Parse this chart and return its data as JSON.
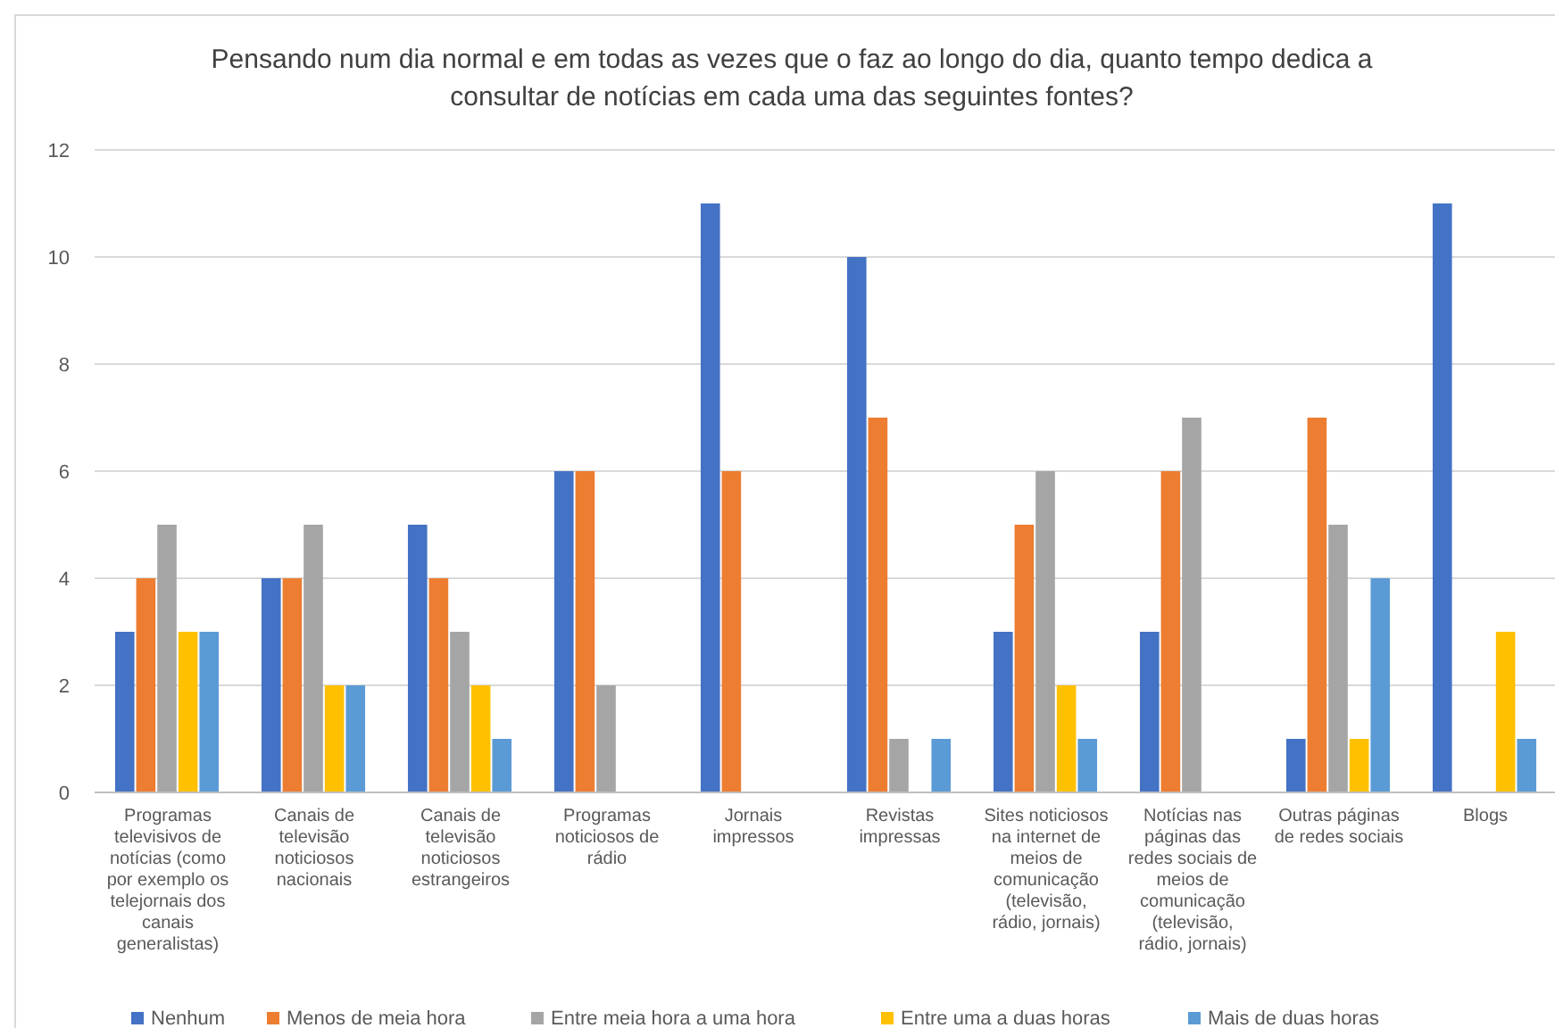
{
  "chart_data": {
    "type": "bar",
    "title": "Pensando num dia normal e em todas as vezes que o faz ao longo do dia, quanto tempo dedica a consultar de notícias em cada uma das seguintes fontes?",
    "categories": [
      "Programas televisivos de notícias (como por exemplo os telejornais dos canais generalistas)",
      "Canais de televisão noticiosos nacionais",
      "Canais de televisão noticiosos estrangeiros",
      "Programas noticiosos de rádio",
      "Jornais impressos",
      "Revistas impressas",
      "Sites noticiosos na internet de meios de comunicação (televisão, rádio, jornais)",
      "Notícias nas páginas das redes sociais de meios de comunicação (televisão, rádio, jornais)",
      "Outras páginas de redes sociais",
      "Blogs"
    ],
    "series": [
      {
        "name": "Nenhum",
        "color": "#4472c4",
        "values": [
          3,
          4,
          5,
          6,
          11,
          10,
          3,
          3,
          1,
          11
        ]
      },
      {
        "name": "Menos de meia hora",
        "color": "#ed7d31",
        "values": [
          4,
          4,
          4,
          6,
          6,
          7,
          5,
          6,
          7,
          0
        ]
      },
      {
        "name": "Entre meia hora a uma hora",
        "color": "#a5a5a5",
        "values": [
          5,
          5,
          3,
          2,
          0,
          1,
          6,
          7,
          5,
          0
        ]
      },
      {
        "name": "Entre uma a duas horas",
        "color": "#ffc000",
        "values": [
          3,
          2,
          2,
          0,
          0,
          0,
          2,
          0,
          1,
          3
        ]
      },
      {
        "name": "Mais de duas horas",
        "color": "#5b9bd5",
        "values": [
          3,
          2,
          1,
          0,
          0,
          1,
          1,
          0,
          4,
          1
        ]
      }
    ],
    "ylim": [
      0,
      12
    ],
    "yticks": [
      0,
      2,
      4,
      6,
      8,
      10,
      12
    ],
    "grid": "y",
    "legend": "bottom"
  }
}
